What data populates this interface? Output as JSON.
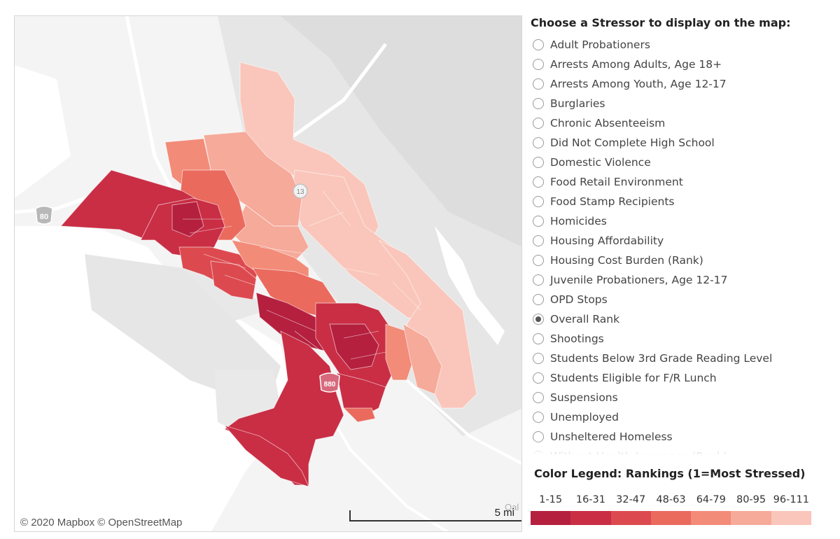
{
  "map": {
    "attribution": "© 2020 Mapbox © OpenStreetMap",
    "scale_label": "5 mi",
    "highway_shields": [
      "80",
      "13",
      "880"
    ],
    "partial_place_label": "Oal"
  },
  "panel": {
    "title": "Choose a Stressor to display on the map:",
    "stressors": [
      {
        "label": "Adult Probationers",
        "selected": false
      },
      {
        "label": "Arrests Among Adults, Age 18+",
        "selected": false
      },
      {
        "label": "Arrests Among Youth, Age 12-17",
        "selected": false
      },
      {
        "label": "Burglaries",
        "selected": false
      },
      {
        "label": "Chronic Absenteeism",
        "selected": false
      },
      {
        "label": "Did Not Complete High School",
        "selected": false
      },
      {
        "label": "Domestic Violence",
        "selected": false
      },
      {
        "label": "Food Retail Environment",
        "selected": false
      },
      {
        "label": "Food Stamp Recipients",
        "selected": false
      },
      {
        "label": "Homicides",
        "selected": false
      },
      {
        "label": "Housing Affordability",
        "selected": false
      },
      {
        "label": "Housing Cost Burden (Rank)",
        "selected": false
      },
      {
        "label": "Juvenile Probationers, Age 12-17",
        "selected": false
      },
      {
        "label": "OPD Stops",
        "selected": false
      },
      {
        "label": "Overall Rank",
        "selected": true
      },
      {
        "label": "Shootings",
        "selected": false
      },
      {
        "label": "Students Below 3rd Grade Reading Level",
        "selected": false
      },
      {
        "label": "Students Eligible for F/R Lunch",
        "selected": false
      },
      {
        "label": "Suspensions",
        "selected": false
      },
      {
        "label": "Unemployed",
        "selected": false
      },
      {
        "label": "Unsheltered Homeless",
        "selected": false
      },
      {
        "label": "Without Health Insurance (Rank)",
        "selected": false
      }
    ]
  },
  "legend": {
    "title": "Color Legend: Rankings (1=Most Stressed)",
    "bins": [
      {
        "label": "1-15",
        "color": "#b5203f"
      },
      {
        "label": "16-31",
        "color": "#c92e45"
      },
      {
        "label": "32-47",
        "color": "#dc4a4f"
      },
      {
        "label": "48-63",
        "color": "#ea6a5e"
      },
      {
        "label": "64-79",
        "color": "#f28b78"
      },
      {
        "label": "80-95",
        "color": "#f6aa9a"
      },
      {
        "label": "96-111",
        "color": "#fac6bb"
      }
    ]
  }
}
